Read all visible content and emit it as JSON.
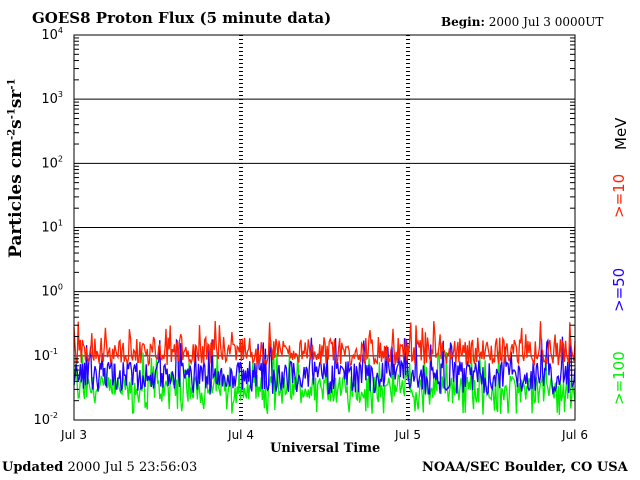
{
  "header": {
    "title": "GOES8 Proton Flux (5 minute data)",
    "begin_label": "Begin:",
    "begin_value": "2000 Jul 3 0000UT"
  },
  "footer": {
    "updated_label": "Updated",
    "updated_value": "2000 Jul  5 23:56:03",
    "credit": "NOAA/SEC Boulder, CO USA"
  },
  "chart_data": {
    "type": "line",
    "title": "GOES8 Proton Flux (5 minute data)",
    "ylabel": "Particles cm⁻²s⁻¹sr⁻¹",
    "xlabel": "Universal Time",
    "yscale": "log",
    "ylim": [
      0.01,
      10000
    ],
    "yticks": [
      {
        "base": "10",
        "exp": "-2"
      },
      {
        "base": "10",
        "exp": "-1"
      },
      {
        "base": "10",
        "exp": "0"
      },
      {
        "base": "10",
        "exp": "1"
      },
      {
        "base": "10",
        "exp": "2"
      },
      {
        "base": "10",
        "exp": "3"
      },
      {
        "base": "10",
        "exp": "4"
      }
    ],
    "xticks": [
      "Jul 3",
      "Jul 4",
      "Jul 5",
      "Jul 6"
    ],
    "xlim": [
      "2000-07-03T00:00",
      "2000-07-06T00:00"
    ],
    "grid": true,
    "legend_position": "right",
    "energy_unit": "MeV",
    "series": [
      {
        "name": ">=10",
        "color": "#ff2200",
        "typical": 0.12,
        "min": 0.07,
        "max": 0.35
      },
      {
        "name": ">=50",
        "color": "#2200ff",
        "typical": 0.05,
        "min": 0.025,
        "max": 0.2
      },
      {
        "name": ">=100",
        "color": "#00ee00",
        "typical": 0.03,
        "min": 0.012,
        "max": 0.12
      }
    ]
  }
}
